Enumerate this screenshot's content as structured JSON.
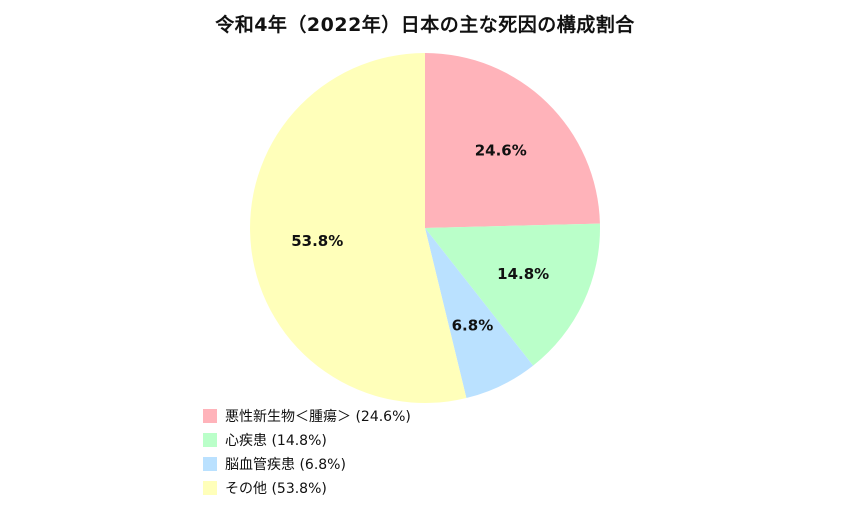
{
  "chart_data": {
    "type": "pie",
    "title": "令和4年（2022年）日本の主な死因の構成割合",
    "slices": [
      {
        "label": "悪性新生物＜腫瘍＞",
        "value": 24.6,
        "value_label": "24.6%",
        "legend_text": "悪性新生物＜腫瘍＞ (24.6%)",
        "color": "#ffb3ba"
      },
      {
        "label": "心疾患",
        "value": 14.8,
        "value_label": "14.8%",
        "legend_text": "心疾患 (14.8%)",
        "color": "#baffc9"
      },
      {
        "label": "脳血管疾患",
        "value": 6.8,
        "value_label": "6.8%",
        "legend_text": "脳血管疾患 (6.8%)",
        "color": "#bae1ff"
      },
      {
        "label": "その他",
        "value": 53.8,
        "value_label": "53.8%",
        "legend_text": "その他 (53.8%)",
        "color": "#ffffba"
      }
    ],
    "start_angle": "12 o'clock",
    "direction": "clockwise",
    "legend_position": "bottom-left"
  }
}
